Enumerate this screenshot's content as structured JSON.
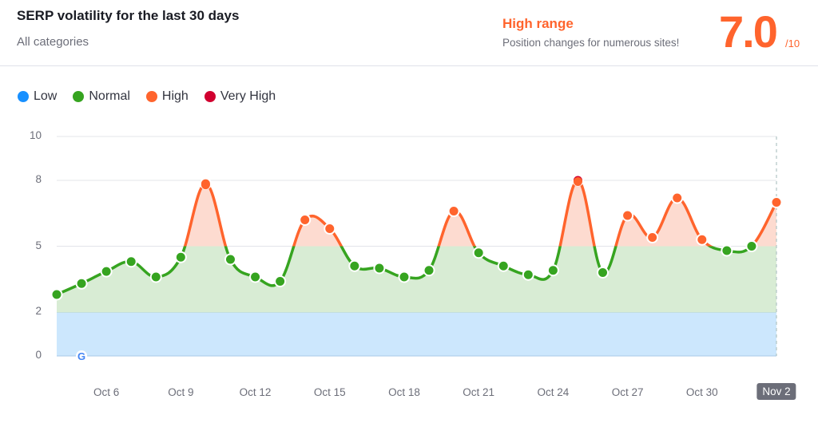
{
  "header": {
    "title": "SERP volatility for the last 30 days",
    "subtitle": "All categories",
    "range_title": "High range",
    "range_desc": "Position changes for numerous sites!",
    "score": "7.0",
    "score_max": "/10"
  },
  "legend": [
    {
      "label": "Low",
      "color": "#1890ff"
    },
    {
      "label": "Normal",
      "color": "#36a420"
    },
    {
      "label": "High",
      "color": "#ff642d"
    },
    {
      "label": "Very High",
      "color": "#d1002f"
    }
  ],
  "colors": {
    "low_band": "#cce7fd",
    "normal_band": "#d8ecd4",
    "high_band": "#fddbd0",
    "normal_line": "#36a420",
    "high_line": "#ff642d",
    "very_high": "#d1002f",
    "grid": "#e3e4ea"
  },
  "axis": {
    "y_ticks": [
      "10",
      "8",
      "5",
      "2",
      "0"
    ],
    "x_ticks": [
      "Oct 6",
      "Oct 9",
      "Oct 12",
      "Oct 15",
      "Oct 18",
      "Oct 21",
      "Oct 24",
      "Oct 27",
      "Oct 30",
      "Nov 2"
    ],
    "selected_x": "Nov 2"
  },
  "chart_data": {
    "type": "line",
    "title": "SERP volatility for the last 30 days",
    "subtitle": "All categories",
    "xlabel": "",
    "ylabel": "",
    "ylim": [
      0,
      10
    ],
    "y_ticks": [
      0,
      2,
      5,
      8,
      10
    ],
    "grid": true,
    "legend_position": "top-left",
    "legend": [
      "Low",
      "Normal",
      "High",
      "Very High"
    ],
    "bands": [
      {
        "name": "Low",
        "range": [
          0,
          2
        ]
      },
      {
        "name": "Normal",
        "range": [
          2,
          5
        ]
      },
      {
        "name": "High",
        "range": [
          5,
          8
        ]
      },
      {
        "name": "Very High",
        "range": [
          8,
          10
        ]
      }
    ],
    "x": [
      "Oct 4",
      "Oct 5",
      "Oct 6",
      "Oct 7",
      "Oct 8",
      "Oct 9",
      "Oct 10",
      "Oct 11",
      "Oct 12",
      "Oct 13",
      "Oct 14",
      "Oct 15",
      "Oct 16",
      "Oct 17",
      "Oct 18",
      "Oct 19",
      "Oct 20",
      "Oct 21",
      "Oct 22",
      "Oct 23",
      "Oct 24",
      "Oct 25",
      "Oct 26",
      "Oct 27",
      "Oct 28",
      "Oct 29",
      "Oct 30",
      "Oct 31",
      "Nov 1",
      "Nov 2"
    ],
    "series": [
      {
        "name": "Volatility",
        "values": [
          2.8,
          3.3,
          3.85,
          4.3,
          3.6,
          4.5,
          7.85,
          4.4,
          3.6,
          3.4,
          6.2,
          5.8,
          4.1,
          4.0,
          3.6,
          3.9,
          6.6,
          4.7,
          4.1,
          3.7,
          3.9,
          8.0,
          3.8,
          6.4,
          5.4,
          7.2,
          5.3,
          4.8,
          5.0,
          7.0
        ]
      }
    ],
    "current_value": 7.0,
    "current_label": "High range"
  }
}
